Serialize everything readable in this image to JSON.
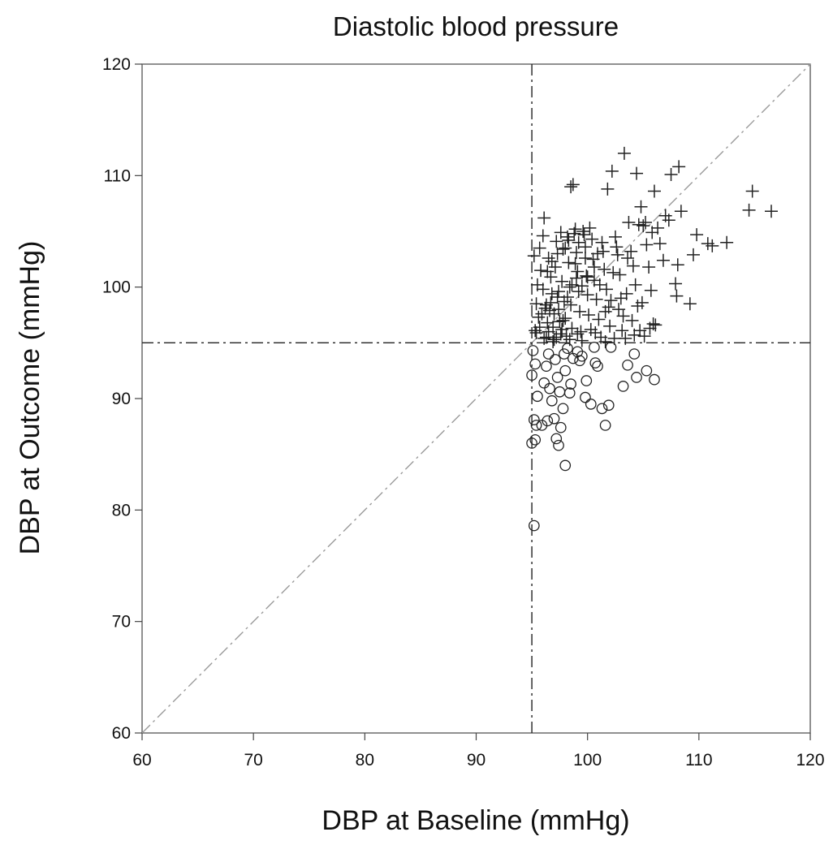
{
  "chart_data": {
    "type": "scatter",
    "title": "Diastolic blood pressure",
    "xlabel": "DBP at Baseline (mmHg)",
    "ylabel": "DBP at Outcome (mmHg)",
    "xlim": [
      60,
      120
    ],
    "ylim": [
      60,
      120
    ],
    "x_ticks": [
      60,
      70,
      80,
      90,
      100,
      110,
      120
    ],
    "y_ticks": [
      60,
      70,
      80,
      90,
      100,
      110,
      120
    ],
    "x_tick_labels": [
      "60",
      "70",
      "80",
      "90",
      "100",
      "110",
      "120"
    ],
    "y_tick_labels": [
      "60",
      "70",
      "80",
      "90",
      "100",
      "110",
      "120"
    ],
    "grid": false,
    "legend": "none",
    "reference_lines": [
      {
        "kind": "diagonal",
        "from": [
          60,
          60
        ],
        "to": [
          120,
          120
        ],
        "style": "dash-dot",
        "color": "#9a9a9a"
      },
      {
        "kind": "vertical",
        "x": 95,
        "style": "dash-dot",
        "color": "#222222"
      },
      {
        "kind": "horizontal",
        "y": 95,
        "style": "dash-dot",
        "color": "#222222"
      }
    ],
    "series": [
      {
        "marker": "plus",
        "color": "#222222",
        "points": [
          [
            95.2,
            102.8
          ],
          [
            95.5,
            100.2
          ],
          [
            95.4,
            98.5
          ],
          [
            95.6,
            97.3
          ],
          [
            95.3,
            96.1
          ],
          [
            95.8,
            101.5
          ],
          [
            96.1,
            106.2
          ],
          [
            96.0,
            99.8
          ],
          [
            96.2,
            98.1
          ],
          [
            96.4,
            96.8
          ],
          [
            96.3,
            95.5
          ],
          [
            96.5,
            102.6
          ],
          [
            96.7,
            100.9
          ],
          [
            96.8,
            99.4
          ],
          [
            96.6,
            97.9
          ],
          [
            96.9,
            96.4
          ],
          [
            97.0,
            95.3
          ],
          [
            97.2,
            104.1
          ],
          [
            97.1,
            101.8
          ],
          [
            97.3,
            99.1
          ],
          [
            97.4,
            98.0
          ],
          [
            97.5,
            96.9
          ],
          [
            97.6,
            95.8
          ],
          [
            97.8,
            103.4
          ],
          [
            97.7,
            100.5
          ],
          [
            97.9,
            98.7
          ],
          [
            98.0,
            97.2
          ],
          [
            98.1,
            95.6
          ],
          [
            98.2,
            104.5
          ],
          [
            98.3,
            102.2
          ],
          [
            98.4,
            100.0
          ],
          [
            98.5,
            98.4
          ],
          [
            98.6,
            96.3
          ],
          [
            98.7,
            109.2
          ],
          [
            98.5,
            109.0
          ],
          [
            98.9,
            105.2
          ],
          [
            99.0,
            103.1
          ],
          [
            99.1,
            101.4
          ],
          [
            99.2,
            99.6
          ],
          [
            99.3,
            97.8
          ],
          [
            99.4,
            96.0
          ],
          [
            99.5,
            95.2
          ],
          [
            99.6,
            105.0
          ],
          [
            99.8,
            103.6
          ],
          [
            99.9,
            101.0
          ],
          [
            100.0,
            99.3
          ],
          [
            100.1,
            97.5
          ],
          [
            100.3,
            96.2
          ],
          [
            100.2,
            105.3
          ],
          [
            100.5,
            102.5
          ],
          [
            100.6,
            100.6
          ],
          [
            100.8,
            98.9
          ],
          [
            101.0,
            97.1
          ],
          [
            101.2,
            95.5
          ],
          [
            101.3,
            104.0
          ],
          [
            101.5,
            101.6
          ],
          [
            101.7,
            99.8
          ],
          [
            101.9,
            98.2
          ],
          [
            102.0,
            96.5
          ],
          [
            101.8,
            108.8
          ],
          [
            102.2,
            110.4
          ],
          [
            102.5,
            104.5
          ],
          [
            102.7,
            102.9
          ],
          [
            102.9,
            101.1
          ],
          [
            103.0,
            99.0
          ],
          [
            103.2,
            97.4
          ],
          [
            103.4,
            95.4
          ],
          [
            103.3,
            112.0
          ],
          [
            103.7,
            105.8
          ],
          [
            103.9,
            103.2
          ],
          [
            104.1,
            101.9
          ],
          [
            104.3,
            100.2
          ],
          [
            104.5,
            98.3
          ],
          [
            104.7,
            96.1
          ],
          [
            104.4,
            110.2
          ],
          [
            104.8,
            107.2
          ],
          [
            105.0,
            105.5
          ],
          [
            105.3,
            103.8
          ],
          [
            105.5,
            101.8
          ],
          [
            105.7,
            99.7
          ],
          [
            105.9,
            96.7
          ],
          [
            106.0,
            108.6
          ],
          [
            106.3,
            105.3
          ],
          [
            106.5,
            103.9
          ],
          [
            106.8,
            102.4
          ],
          [
            107.0,
            106.4
          ],
          [
            107.3,
            106.0
          ],
          [
            107.5,
            110.1
          ],
          [
            107.9,
            100.3
          ],
          [
            108.0,
            99.2
          ],
          [
            108.2,
            110.8
          ],
          [
            108.4,
            106.8
          ],
          [
            108.1,
            102.0
          ],
          [
            109.2,
            98.5
          ],
          [
            109.5,
            102.9
          ],
          [
            109.8,
            104.7
          ],
          [
            110.8,
            103.9
          ],
          [
            111.2,
            103.7
          ],
          [
            112.5,
            104.0
          ],
          [
            114.5,
            106.9
          ],
          [
            114.8,
            108.6
          ],
          [
            116.5,
            106.8
          ],
          [
            95.7,
            103.5
          ],
          [
            96.0,
            104.6
          ],
          [
            96.4,
            101.4
          ],
          [
            96.8,
            102.3
          ],
          [
            97.3,
            103.0
          ],
          [
            97.6,
            104.9
          ],
          [
            98.0,
            103.5
          ],
          [
            98.3,
            104.2
          ],
          [
            98.8,
            104.8
          ],
          [
            99.2,
            104.0
          ],
          [
            99.7,
            104.7
          ],
          [
            100.4,
            104.3
          ],
          [
            101.4,
            103.2
          ],
          [
            102.6,
            103.6
          ],
          [
            103.6,
            102.6
          ],
          [
            104.6,
            105.6
          ],
          [
            105.2,
            105.8
          ],
          [
            105.8,
            104.9
          ],
          [
            95.9,
            97.6
          ],
          [
            96.3,
            98.4
          ],
          [
            96.7,
            98.6
          ],
          [
            97.0,
            97.6
          ],
          [
            97.4,
            99.6
          ],
          [
            97.8,
            97.0
          ],
          [
            98.2,
            99.1
          ],
          [
            98.6,
            100.2
          ],
          [
            99.0,
            100.8
          ],
          [
            99.5,
            100.1
          ],
          [
            100.0,
            100.9
          ],
          [
            100.6,
            101.8
          ],
          [
            101.1,
            100.2
          ],
          [
            101.6,
            97.8
          ],
          [
            102.1,
            98.8
          ],
          [
            102.8,
            98.0
          ],
          [
            103.5,
            99.4
          ],
          [
            104.0,
            97.0
          ],
          [
            104.9,
            98.6
          ],
          [
            105.6,
            96.3
          ],
          [
            95.4,
            95.9
          ],
          [
            95.7,
            96.4
          ],
          [
            96.1,
            95.4
          ],
          [
            96.5,
            96.0
          ],
          [
            96.9,
            95.1
          ],
          [
            97.2,
            95.5
          ],
          [
            97.7,
            96.2
          ],
          [
            98.4,
            95.3
          ],
          [
            99.1,
            95.8
          ],
          [
            100.7,
            95.9
          ],
          [
            101.6,
            95.1
          ],
          [
            102.4,
            95.4
          ],
          [
            103.1,
            96.1
          ],
          [
            104.2,
            95.7
          ],
          [
            105.1,
            95.6
          ],
          [
            106.1,
            96.6
          ],
          [
            98.9,
            102.1
          ],
          [
            99.8,
            102.6
          ],
          [
            100.9,
            103.0
          ],
          [
            102.3,
            101.3
          ]
        ]
      },
      {
        "marker": "circle",
        "color": "#222222",
        "points": [
          [
            95.1,
            94.3
          ],
          [
            95.3,
            93.1
          ],
          [
            95.0,
            92.1
          ],
          [
            95.5,
            90.2
          ],
          [
            95.2,
            88.1
          ],
          [
            95.3,
            86.3
          ],
          [
            95.0,
            86.0
          ],
          [
            95.4,
            87.6
          ],
          [
            95.9,
            87.6
          ],
          [
            96.1,
            91.4
          ],
          [
            96.3,
            92.9
          ],
          [
            96.5,
            94.0
          ],
          [
            96.6,
            90.9
          ],
          [
            96.8,
            89.8
          ],
          [
            97.0,
            88.2
          ],
          [
            97.2,
            86.4
          ],
          [
            97.4,
            85.8
          ],
          [
            97.1,
            93.5
          ],
          [
            97.3,
            91.9
          ],
          [
            97.5,
            90.6
          ],
          [
            97.6,
            87.4
          ],
          [
            97.8,
            89.1
          ],
          [
            98.0,
            92.5
          ],
          [
            98.2,
            94.5
          ],
          [
            98.4,
            90.5
          ],
          [
            98.5,
            91.3
          ],
          [
            98.7,
            93.6
          ],
          [
            98.0,
            84.0
          ],
          [
            99.1,
            94.2
          ],
          [
            99.5,
            93.8
          ],
          [
            99.9,
            91.6
          ],
          [
            99.8,
            90.1
          ],
          [
            100.3,
            89.5
          ],
          [
            100.6,
            94.6
          ],
          [
            100.9,
            92.9
          ],
          [
            101.3,
            89.1
          ],
          [
            101.6,
            87.6
          ],
          [
            101.9,
            89.4
          ],
          [
            102.1,
            94.6
          ],
          [
            103.2,
            91.1
          ],
          [
            103.6,
            93.0
          ],
          [
            104.2,
            94.0
          ],
          [
            104.4,
            91.9
          ],
          [
            105.3,
            92.5
          ],
          [
            106.0,
            91.7
          ],
          [
            95.2,
            78.6
          ],
          [
            96.4,
            88.0
          ],
          [
            97.9,
            94.0
          ],
          [
            99.3,
            93.4
          ],
          [
            100.7,
            93.2
          ]
        ]
      }
    ]
  }
}
